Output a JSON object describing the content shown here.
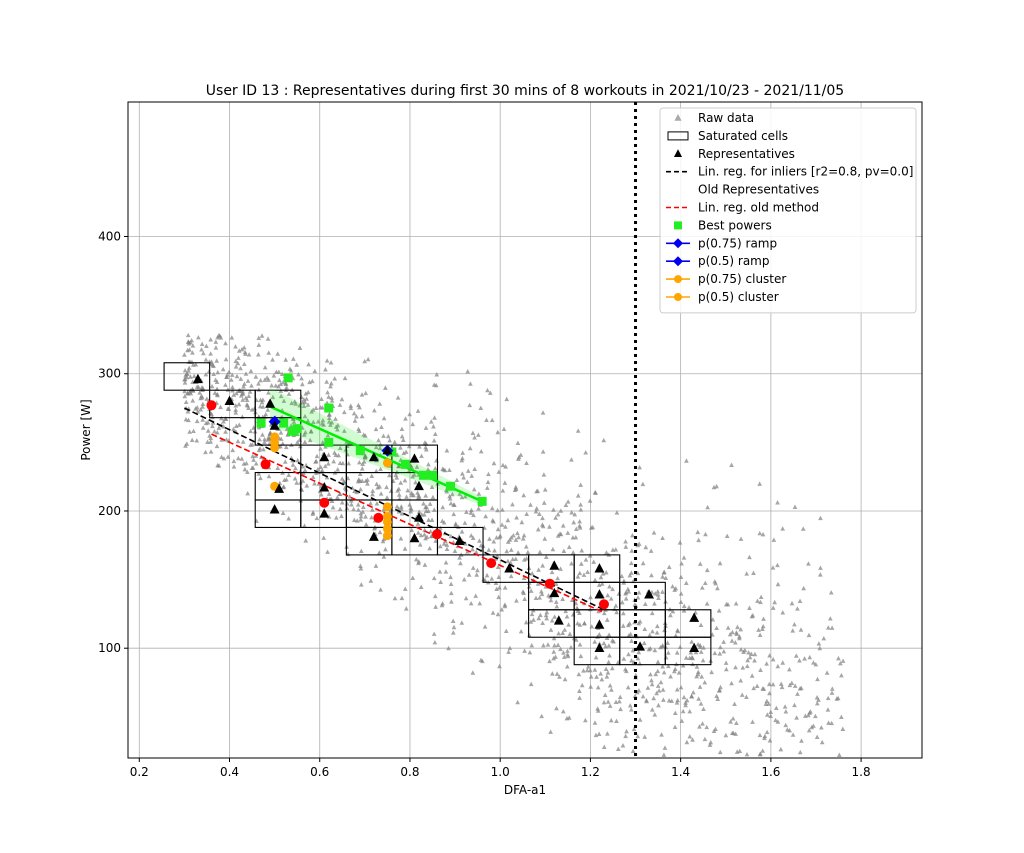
{
  "chart_data": {
    "type": "scatter",
    "title": "User ID 13    : Representatives during first 30 mins of 8 workouts in 2021/10/23 - 2021/11/05",
    "xlabel": "DFA-a1",
    "ylabel": "Power [W]",
    "xlim": [
      0.175,
      1.935
    ],
    "ylim": [
      20,
      498
    ],
    "xticks": [
      0.2,
      0.4,
      0.6,
      0.8,
      1.0,
      1.2,
      1.4,
      1.6,
      1.8
    ],
    "yticks": [
      100,
      200,
      300,
      400
    ],
    "xtick_labels": [
      "0.2",
      "0.4",
      "0.6",
      "0.8",
      "1.0",
      "1.2",
      "1.4",
      "1.6",
      "1.8"
    ],
    "ytick_labels": [
      "100",
      "200",
      "300",
      "400"
    ],
    "grid": true,
    "legend_position": "top-right",
    "vertical_line_x": 1.3,
    "colors": {
      "raw": "#808080",
      "representatives": "#000000",
      "linreg_inliers": "#000000",
      "old_reps": "#ff0000",
      "linreg_old": "#ff0000",
      "best_powers": "#22ee22",
      "ramp": "#0000ee",
      "cluster": "#ffa500",
      "best_fit": "#00ee00"
    },
    "legend": [
      {
        "label": "Raw data",
        "marker": "triangle-gray"
      },
      {
        "label": "Saturated cells",
        "marker": "rect"
      },
      {
        "label": "Representatives",
        "marker": "triangle-black"
      },
      {
        "label": "Lin. reg. for inliers [r2=0.8, pv=0.0]",
        "marker": "dash-black"
      },
      {
        "label": "Old Representatives",
        "marker": "none"
      },
      {
        "label": "Lin. reg. old method",
        "marker": "dash-red"
      },
      {
        "label": "Best powers",
        "marker": "square-green"
      },
      {
        "label": "p(0.75) ramp",
        "marker": "diamond-blue"
      },
      {
        "label": "p(0.5) ramp",
        "marker": "diamond-blue"
      },
      {
        "label": "p(0.75) cluster",
        "marker": "circle-orange"
      },
      {
        "label": "p(0.5) cluster",
        "marker": "circle-orange"
      }
    ],
    "saturated_cells": [
      {
        "x": 0.255,
        "y": 288,
        "w": 0.101,
        "h": 20
      },
      {
        "x": 0.356,
        "y": 268,
        "w": 0.101,
        "h": 20
      },
      {
        "x": 0.457,
        "y": 268,
        "w": 0.101,
        "h": 20
      },
      {
        "x": 0.457,
        "y": 248,
        "w": 0.101,
        "h": 20
      },
      {
        "x": 0.457,
        "y": 208,
        "w": 0.101,
        "h": 20
      },
      {
        "x": 0.457,
        "y": 188,
        "w": 0.101,
        "h": 20
      },
      {
        "x": 0.558,
        "y": 228,
        "w": 0.101,
        "h": 20
      },
      {
        "x": 0.558,
        "y": 208,
        "w": 0.101,
        "h": 20
      },
      {
        "x": 0.558,
        "y": 188,
        "w": 0.101,
        "h": 20
      },
      {
        "x": 0.659,
        "y": 228,
        "w": 0.101,
        "h": 20
      },
      {
        "x": 0.659,
        "y": 208,
        "w": 0.101,
        "h": 20
      },
      {
        "x": 0.659,
        "y": 188,
        "w": 0.101,
        "h": 20
      },
      {
        "x": 0.659,
        "y": 168,
        "w": 0.101,
        "h": 20
      },
      {
        "x": 0.76,
        "y": 228,
        "w": 0.101,
        "h": 20
      },
      {
        "x": 0.76,
        "y": 208,
        "w": 0.101,
        "h": 20
      },
      {
        "x": 0.76,
        "y": 188,
        "w": 0.101,
        "h": 20
      },
      {
        "x": 0.76,
        "y": 168,
        "w": 0.101,
        "h": 20
      },
      {
        "x": 0.861,
        "y": 168,
        "w": 0.101,
        "h": 20
      },
      {
        "x": 0.962,
        "y": 148,
        "w": 0.101,
        "h": 20
      },
      {
        "x": 1.063,
        "y": 148,
        "w": 0.101,
        "h": 20
      },
      {
        "x": 1.063,
        "y": 128,
        "w": 0.101,
        "h": 20
      },
      {
        "x": 1.063,
        "y": 108,
        "w": 0.101,
        "h": 20
      },
      {
        "x": 1.164,
        "y": 148,
        "w": 0.101,
        "h": 20
      },
      {
        "x": 1.164,
        "y": 128,
        "w": 0.101,
        "h": 20
      },
      {
        "x": 1.164,
        "y": 108,
        "w": 0.101,
        "h": 20
      },
      {
        "x": 1.164,
        "y": 88,
        "w": 0.101,
        "h": 20
      },
      {
        "x": 1.265,
        "y": 128,
        "w": 0.101,
        "h": 20
      },
      {
        "x": 1.265,
        "y": 108,
        "w": 0.101,
        "h": 20
      },
      {
        "x": 1.265,
        "y": 88,
        "w": 0.101,
        "h": 20
      },
      {
        "x": 1.366,
        "y": 108,
        "w": 0.101,
        "h": 20
      },
      {
        "x": 1.366,
        "y": 88,
        "w": 0.101,
        "h": 20
      }
    ],
    "representatives": [
      {
        "x": 0.33,
        "y": 296
      },
      {
        "x": 0.4,
        "y": 280
      },
      {
        "x": 0.49,
        "y": 278
      },
      {
        "x": 0.5,
        "y": 262
      },
      {
        "x": 0.51,
        "y": 216
      },
      {
        "x": 0.5,
        "y": 201
      },
      {
        "x": 0.61,
        "y": 239
      },
      {
        "x": 0.61,
        "y": 217
      },
      {
        "x": 0.61,
        "y": 198
      },
      {
        "x": 0.72,
        "y": 239
      },
      {
        "x": 0.72,
        "y": 181
      },
      {
        "x": 0.75,
        "y": 244
      },
      {
        "x": 0.81,
        "y": 238
      },
      {
        "x": 0.82,
        "y": 218
      },
      {
        "x": 0.82,
        "y": 195
      },
      {
        "x": 0.81,
        "y": 180
      },
      {
        "x": 0.91,
        "y": 178
      },
      {
        "x": 1.02,
        "y": 158
      },
      {
        "x": 1.12,
        "y": 160
      },
      {
        "x": 1.12,
        "y": 140
      },
      {
        "x": 1.13,
        "y": 120
      },
      {
        "x": 1.22,
        "y": 158
      },
      {
        "x": 1.22,
        "y": 139
      },
      {
        "x": 1.22,
        "y": 117
      },
      {
        "x": 1.22,
        "y": 100
      },
      {
        "x": 1.31,
        "y": 101
      },
      {
        "x": 1.33,
        "y": 139
      },
      {
        "x": 1.43,
        "y": 122
      },
      {
        "x": 1.43,
        "y": 100
      }
    ],
    "old_representatives": [
      {
        "x": 0.36,
        "y": 277
      },
      {
        "x": 0.48,
        "y": 234
      },
      {
        "x": 0.61,
        "y": 206
      },
      {
        "x": 0.73,
        "y": 195
      },
      {
        "x": 0.86,
        "y": 183
      },
      {
        "x": 0.98,
        "y": 162
      },
      {
        "x": 1.11,
        "y": 147
      },
      {
        "x": 1.23,
        "y": 132
      }
    ],
    "best_powers": [
      {
        "x": 0.53,
        "y": 297
      },
      {
        "x": 0.62,
        "y": 275
      },
      {
        "x": 0.47,
        "y": 264
      },
      {
        "x": 0.52,
        "y": 264
      },
      {
        "x": 0.54,
        "y": 258
      },
      {
        "x": 0.55,
        "y": 260
      },
      {
        "x": 0.62,
        "y": 250
      },
      {
        "x": 0.69,
        "y": 244
      },
      {
        "x": 0.76,
        "y": 243
      },
      {
        "x": 0.79,
        "y": 234
      },
      {
        "x": 0.83,
        "y": 226
      },
      {
        "x": 0.85,
        "y": 226
      },
      {
        "x": 0.89,
        "y": 218
      },
      {
        "x": 0.96,
        "y": 207
      }
    ],
    "ramp_points": [
      {
        "x": 0.5,
        "y": 265
      },
      {
        "x": 0.75,
        "y": 244
      }
    ],
    "cluster_points": [
      {
        "x": 0.5,
        "y": 254
      },
      {
        "x": 0.5,
        "y": 250
      },
      {
        "x": 0.5,
        "y": 246
      },
      {
        "x": 0.5,
        "y": 218
      },
      {
        "x": 0.75,
        "y": 235
      },
      {
        "x": 0.75,
        "y": 203
      },
      {
        "x": 0.75,
        "y": 196
      },
      {
        "x": 0.75,
        "y": 192
      },
      {
        "x": 0.75,
        "y": 187
      },
      {
        "x": 0.75,
        "y": 182
      }
    ],
    "lines": {
      "linreg_inliers": [
        {
          "x": 0.3,
          "y": 275
        },
        {
          "x": 1.23,
          "y": 128
        }
      ],
      "linreg_old": [
        {
          "x": 0.36,
          "y": 256
        },
        {
          "x": 1.23,
          "y": 126
        }
      ],
      "best_fit": [
        {
          "x": 0.49,
          "y": 276
        },
        {
          "x": 0.96,
          "y": 207
        }
      ]
    }
  }
}
